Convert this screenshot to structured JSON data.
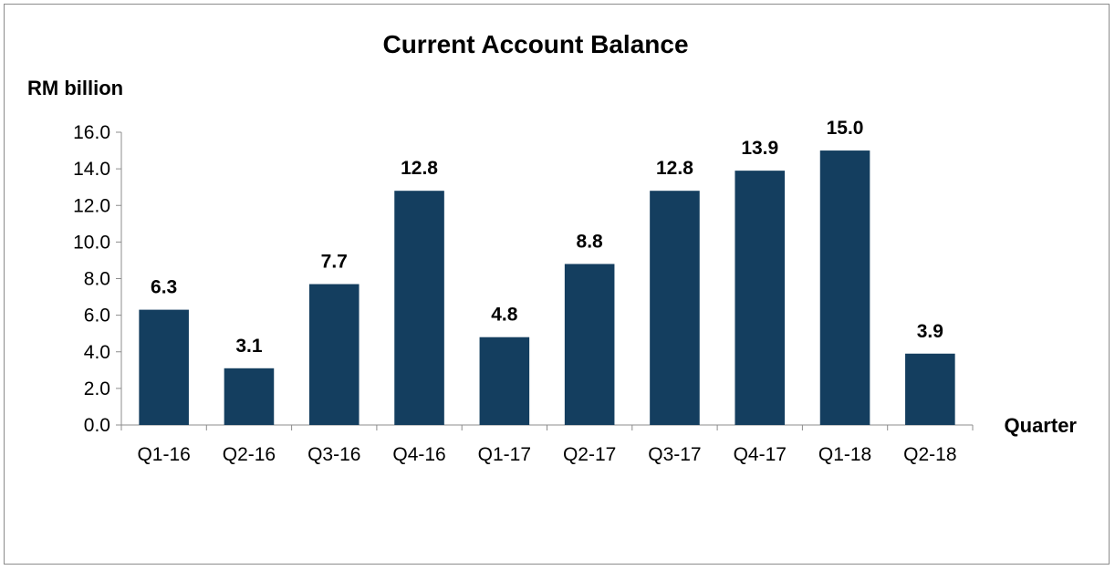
{
  "chart_data": {
    "type": "bar",
    "title": "Current Account Balance",
    "ylabel": "RM billion",
    "xlabel": "Quarter",
    "categories": [
      "Q1-16",
      "Q2-16",
      "Q3-16",
      "Q4-16",
      "Q1-17",
      "Q2-17",
      "Q3-17",
      "Q4-17",
      "Q1-18",
      "Q2-18"
    ],
    "values": [
      6.3,
      3.1,
      7.7,
      12.8,
      4.8,
      8.8,
      12.8,
      13.9,
      15.0,
      3.9
    ],
    "data_labels": [
      "6.3",
      "3.1",
      "7.7",
      "12.8",
      "4.8",
      "8.8",
      "12.8",
      "13.9",
      "15.0",
      "3.9"
    ],
    "ylim": [
      0,
      16
    ],
    "yticks": [
      "0.0",
      "2.0",
      "4.0",
      "6.0",
      "8.0",
      "10.0",
      "12.0",
      "14.0",
      "16.0"
    ],
    "grid": false,
    "legend": "none",
    "bar_color": "#143e5f"
  }
}
